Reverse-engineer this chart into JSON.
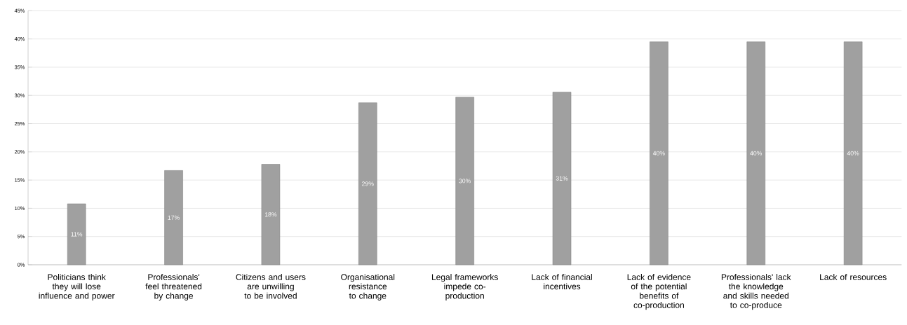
{
  "chart_data": {
    "type": "bar",
    "categories": [
      "Politicians think they will lose influence and power",
      "Professionals' feel threatened by change",
      "Citizens and users are unwilling to be involved",
      "Organisational resistance to change",
      "Legal frameworks impede co-production",
      "Lack of financial incentives",
      "Lack of evidence of the potential benefits of co-production",
      "Professionals' lack the knowledge and skills needed to co-produce",
      "Lack of resources"
    ],
    "values": [
      10.8,
      16.7,
      17.8,
      28.7,
      29.7,
      30.6,
      39.5,
      39.5,
      39.5
    ],
    "value_labels": [
      "11%",
      "17%",
      "18%",
      "29%",
      "30%",
      "31%",
      "40%",
      "40%",
      "40%"
    ],
    "color": "#a0a0a0",
    "ylim": [
      0,
      45
    ],
    "yticks": [
      {
        "value": 0,
        "label": "0%"
      },
      {
        "value": 5,
        "label": "5%"
      },
      {
        "value": 10,
        "label": "10%"
      },
      {
        "value": 15,
        "label": "15%"
      },
      {
        "value": 20,
        "label": "20%"
      },
      {
        "value": 25,
        "label": "25%"
      },
      {
        "value": 30,
        "label": "30%"
      },
      {
        "value": 35,
        "label": "35%"
      },
      {
        "value": 40,
        "label": "40%"
      },
      {
        "value": 45,
        "label": "45%"
      }
    ],
    "grid": "y"
  }
}
